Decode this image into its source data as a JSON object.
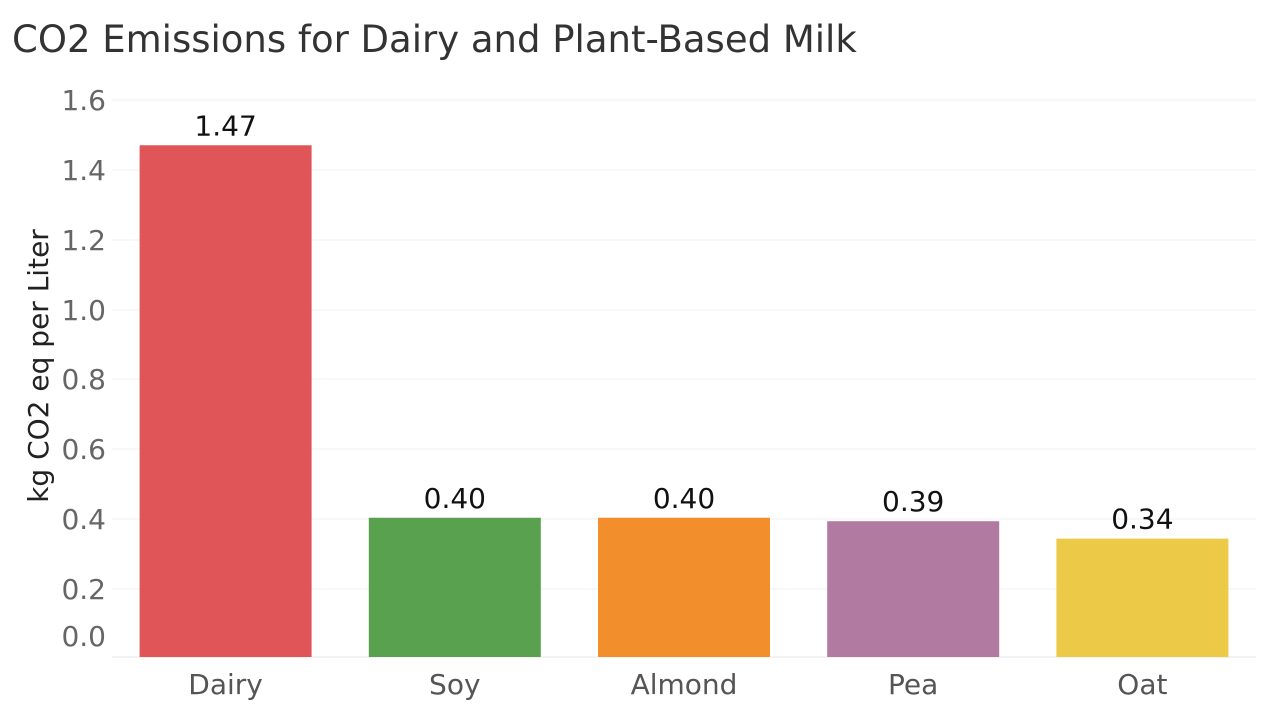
{
  "chart_data": {
    "type": "bar",
    "title": "CO2 Emissions for Dairy and Plant-Based Milk",
    "xlabel": "",
    "ylabel": "kg CO2 eq per Liter",
    "categories": [
      "Dairy",
      "Soy",
      "Almond",
      "Pea",
      "Oat"
    ],
    "values": [
      1.47,
      0.4,
      0.4,
      0.39,
      0.34
    ],
    "value_labels": [
      "1.47",
      "0.40",
      "0.40",
      "0.39",
      "0.34"
    ],
    "colors": [
      "#E05558",
      "#59A14F",
      "#F28E2C",
      "#B07AA1",
      "#EDC948"
    ],
    "yticks": [
      0.0,
      0.2,
      0.4,
      0.6,
      0.8,
      1.0,
      1.2,
      1.4,
      1.6
    ],
    "ytick_labels": [
      "0.0",
      "0.2",
      "0.4",
      "0.6",
      "0.8",
      "1.0",
      "1.2",
      "1.4",
      "1.6"
    ],
    "ylim": [
      0,
      1.6
    ],
    "grid": true
  }
}
